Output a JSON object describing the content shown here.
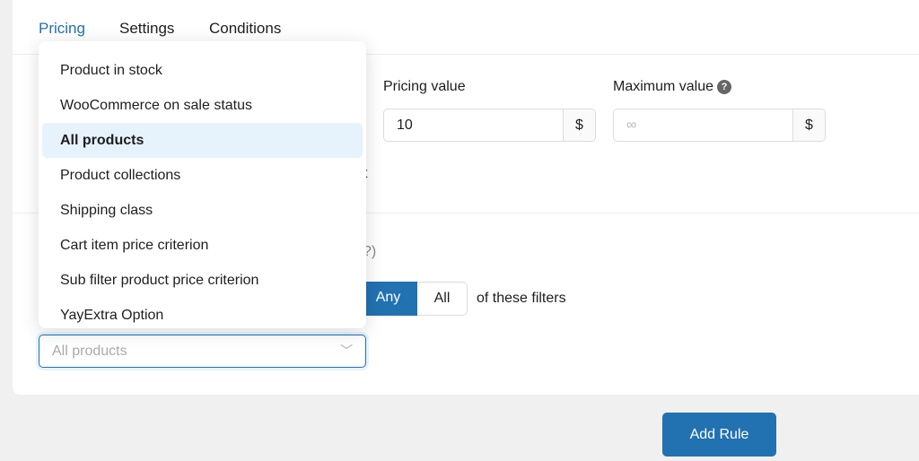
{
  "tabs": [
    {
      "label": "Pricing",
      "active": true
    },
    {
      "label": "Settings"
    },
    {
      "label": "Conditions"
    }
  ],
  "pricing_value": {
    "label": "Pricing value",
    "value": "10",
    "currency": "$"
  },
  "maximum_value": {
    "label": "Maximum value",
    "help": "?",
    "placeholder": "∞",
    "currency": "$"
  },
  "partial_texts": {
    "behind_t": "t",
    "behind_q": "?)"
  },
  "match": {
    "options": [
      "Any",
      "All"
    ],
    "selected": "Any",
    "suffix": "of these filters"
  },
  "dropdown": {
    "items": [
      "Product in stock",
      "WooCommerce on sale status",
      "All products",
      "Product collections",
      "Shipping class",
      "Cart item price criterion",
      "Sub filter product price criterion",
      "YayExtra Option"
    ],
    "selected": "All products"
  },
  "filter_select": {
    "placeholder": "All products"
  },
  "add_rule_label": "Add Rule",
  "colors": {
    "accent": "#2271b1",
    "highlight": "#e6f3fd"
  }
}
